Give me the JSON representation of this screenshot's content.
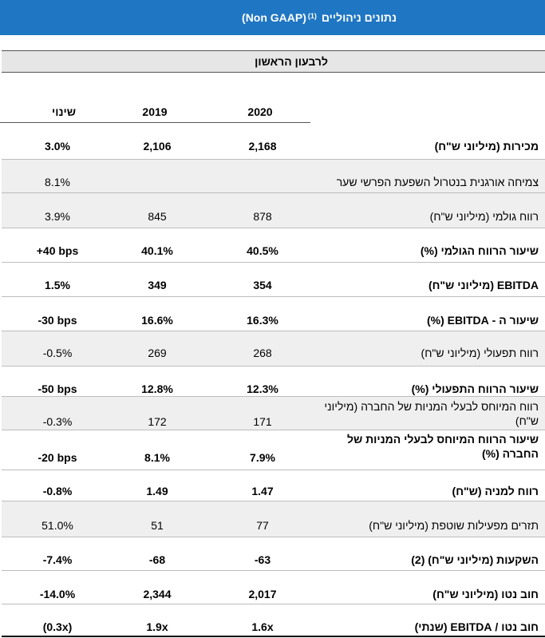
{
  "title": {
    "hebrew": "נתונים ניהוליים",
    "sup": "(1)",
    "gaap": "(Non GAAP)"
  },
  "section_label": "לרבעון הראשון",
  "columns": {
    "change": "שינוי",
    "y2019": "2019",
    "y2020": "2020"
  },
  "rows": [
    {
      "label": "מכירות (מיליוני ש\"ח)",
      "y2020": "2,168",
      "y2019": "2,106",
      "change": "3.0%"
    },
    {
      "label": "צמיחה אורגנית בנטרול השפעת הפרשי שער",
      "y2020": "",
      "y2019": "",
      "change": "8.1%"
    },
    {
      "label": "רווח גולמי (מיליוני ש\"ח)",
      "y2020": "878",
      "y2019": "845",
      "change": "3.9%"
    },
    {
      "label": "שיעור הרווח הגולמי (%)",
      "y2020": "40.5%",
      "y2019": "40.1%",
      "change": "+40 bps"
    },
    {
      "label": "EBITDA (מיליוני ש\"ח)",
      "y2020": "354",
      "y2019": "349",
      "change": "1.5%"
    },
    {
      "label": "שיעור ה - EBITDA (%)",
      "y2020": "16.3%",
      "y2019": "16.6%",
      "change": "-30 bps"
    },
    {
      "label": "רווח תפעולי (מיליוני ש\"ח)",
      "y2020": "268",
      "y2019": "269",
      "change": "-0.5%"
    },
    {
      "label": "שיעור הרווח התפעולי (%)",
      "y2020": "12.3%",
      "y2019": "12.8%",
      "change": "-50 bps"
    },
    {
      "label": "רווח המיוחס לבעלי המניות של החברה (מיליוני ש\"ח)",
      "y2020": "171",
      "y2019": "172",
      "change": "-0.3%"
    },
    {
      "label": "שיעור הרווח המיוחס לבעלי המניות של החברה (%)",
      "y2020": "7.9%",
      "y2019": "8.1%",
      "change": "-20 bps"
    },
    {
      "label": "רווח למניה (ש\"ח)",
      "y2020": "1.47",
      "y2019": "1.49",
      "change": "-0.8%"
    },
    {
      "label": "תזרים מפעילות שוטפת (מיליוני ש\"ח)",
      "y2020": "77",
      "y2019": "51",
      "change": "51.0%"
    },
    {
      "label": "השקעות (מיליוני ש\"ח) (2)",
      "y2020": "-63",
      "y2019": "-68",
      "change": "-7.4%"
    },
    {
      "label": "חוב נטו (מיליוני ש\"ח)",
      "y2020": "2,017",
      "y2019": "2,344",
      "change": "-14.0%"
    },
    {
      "label": "חוב נטו / EBITDA (שנתי)",
      "y2020": "1.6x",
      "y2019": "1.9x",
      "change": "(0.3x)"
    }
  ]
}
